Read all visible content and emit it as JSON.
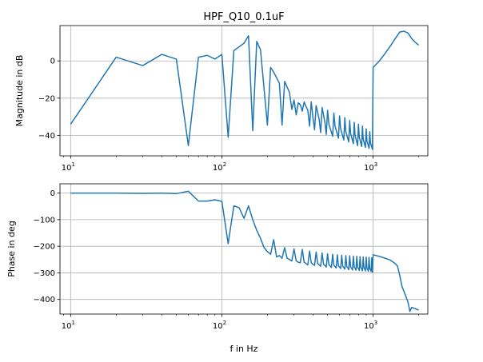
{
  "chart_data": [
    {
      "type": "line",
      "title": "HPF_Q10_0.1uF",
      "xlabel": "",
      "ylabel": "Magnitude in dB",
      "xscale": "log",
      "xlim": [
        8.5,
        2300
      ],
      "ylim": [
        -51,
        19
      ],
      "grid": true,
      "xticks": [
        10,
        100,
        1000
      ],
      "xtick_labels": [
        "10^1",
        "10^2",
        "10^3"
      ],
      "yticks": [
        -40,
        -20,
        0
      ],
      "ytick_labels": [
        "−40",
        "−20",
        "0"
      ],
      "series": [
        {
          "color": "#1f77b4",
          "x": [
            10,
            20,
            30,
            40,
            50,
            60,
            70,
            80,
            90,
            100,
            110,
            120,
            140,
            150,
            160,
            170,
            180,
            200,
            210,
            220,
            240,
            250,
            260,
            280,
            290,
            300,
            310,
            320,
            330,
            340,
            350,
            360,
            370,
            380,
            390,
            400,
            410,
            420,
            440,
            450,
            460,
            480,
            490,
            500,
            510,
            540,
            550,
            560,
            590,
            600,
            610,
            640,
            650,
            660,
            690,
            700,
            710,
            740,
            750,
            760,
            790,
            800,
            810,
            840,
            850,
            860,
            890,
            900,
            910,
            940,
            950,
            960,
            990,
            1000,
            1100,
            1200,
            1300,
            1400,
            1500,
            1600,
            1700,
            1800,
            1900,
            2000
          ],
          "y": [
            -34,
            2,
            -2.5,
            3.5,
            1,
            -45.5,
            2,
            3,
            1,
            3.5,
            -41,
            5.5,
            9.5,
            13.5,
            -37.5,
            10.5,
            6,
            -34.5,
            -3.5,
            -6,
            -12,
            -34.5,
            -11,
            -17,
            -26,
            -21,
            -29,
            -22.5,
            -23.5,
            -27,
            -22,
            -24.5,
            -26.5,
            -35,
            -22,
            -30.5,
            -37,
            -24,
            -31.5,
            -38.5,
            -25,
            -33,
            -39.5,
            -26.5,
            -34,
            -40.5,
            -28,
            -35,
            -41.5,
            -29.5,
            -36.5,
            -42.5,
            -30.5,
            -38,
            -43.5,
            -32,
            -39,
            -44.5,
            -33,
            -40,
            -45.5,
            -34,
            -41,
            -46,
            -35,
            -42,
            -46.5,
            -36.5,
            -43,
            -47,
            -38,
            -44,
            -47.5,
            -3.5,
            0,
            4,
            8,
            12,
            15.5,
            16,
            15,
            12,
            10,
            8.5
          ]
        }
      ]
    },
    {
      "type": "line",
      "title": "",
      "xlabel": "f in Hz",
      "ylabel": "Phase in deg",
      "xscale": "log",
      "xlim": [
        8.5,
        2300
      ],
      "ylim": [
        -455,
        35
      ],
      "grid": true,
      "xticks": [
        10,
        100,
        1000
      ],
      "xtick_labels": [
        "10^1",
        "10^2",
        "10^3"
      ],
      "yticks": [
        -400,
        -300,
        -200,
        -100,
        0
      ],
      "ytick_labels": [
        "−400",
        "−300",
        "−200",
        "−100",
        "0"
      ],
      "series": [
        {
          "color": "#1f77b4",
          "x": [
            10,
            20,
            30,
            40,
            50,
            60,
            70,
            80,
            90,
            100,
            110,
            120,
            130,
            140,
            150,
            160,
            170,
            180,
            190,
            200,
            210,
            220,
            230,
            240,
            250,
            260,
            270,
            280,
            290,
            300,
            310,
            320,
            330,
            340,
            350,
            360,
            370,
            380,
            390,
            400,
            410,
            420,
            430,
            440,
            450,
            460,
            470,
            480,
            490,
            500,
            510,
            520,
            530,
            540,
            550,
            560,
            570,
            580,
            590,
            600,
            610,
            620,
            630,
            640,
            650,
            660,
            670,
            680,
            690,
            700,
            710,
            720,
            730,
            740,
            750,
            760,
            770,
            780,
            790,
            800,
            810,
            820,
            830,
            840,
            850,
            860,
            870,
            880,
            890,
            900,
            910,
            920,
            930,
            940,
            950,
            960,
            970,
            980,
            990,
            1000,
            1100,
            1200,
            1300,
            1400,
            1450,
            1500,
            1550,
            1600,
            1650,
            1700,
            1750,
            1800,
            1900,
            2000
          ],
          "y": [
            0,
            0,
            -1,
            0,
            -2,
            7,
            -30,
            -30,
            -25,
            -31,
            -190,
            -48,
            -55,
            -95,
            -48,
            -100,
            -140,
            -170,
            -205,
            -220,
            -230,
            -175,
            -240,
            -235,
            -245,
            -205,
            -245,
            -250,
            -255,
            -210,
            -255,
            -260,
            -262,
            -212,
            -260,
            -265,
            -270,
            -218,
            -262,
            -268,
            -272,
            -222,
            -265,
            -270,
            -275,
            -225,
            -268,
            -272,
            -278,
            -228,
            -270,
            -274,
            -280,
            -230,
            -272,
            -276,
            -282,
            -232,
            -274,
            -278,
            -284,
            -234,
            -276,
            -280,
            -286,
            -235,
            -277,
            -281,
            -288,
            -236,
            -278,
            -282,
            -289,
            -237,
            -279,
            -283,
            -290,
            -238,
            -280,
            -284,
            -291,
            -239,
            -281,
            -285,
            -292,
            -240,
            -282,
            -286,
            -293,
            -241,
            -283,
            -287,
            -294,
            -242,
            -284,
            -288,
            -295,
            -243,
            -298,
            -232,
            -238,
            -245,
            -252,
            -265,
            -275,
            -310,
            -350,
            -370,
            -390,
            -410,
            -445,
            -430,
            -435,
            -440
          ]
        }
      ]
    }
  ]
}
